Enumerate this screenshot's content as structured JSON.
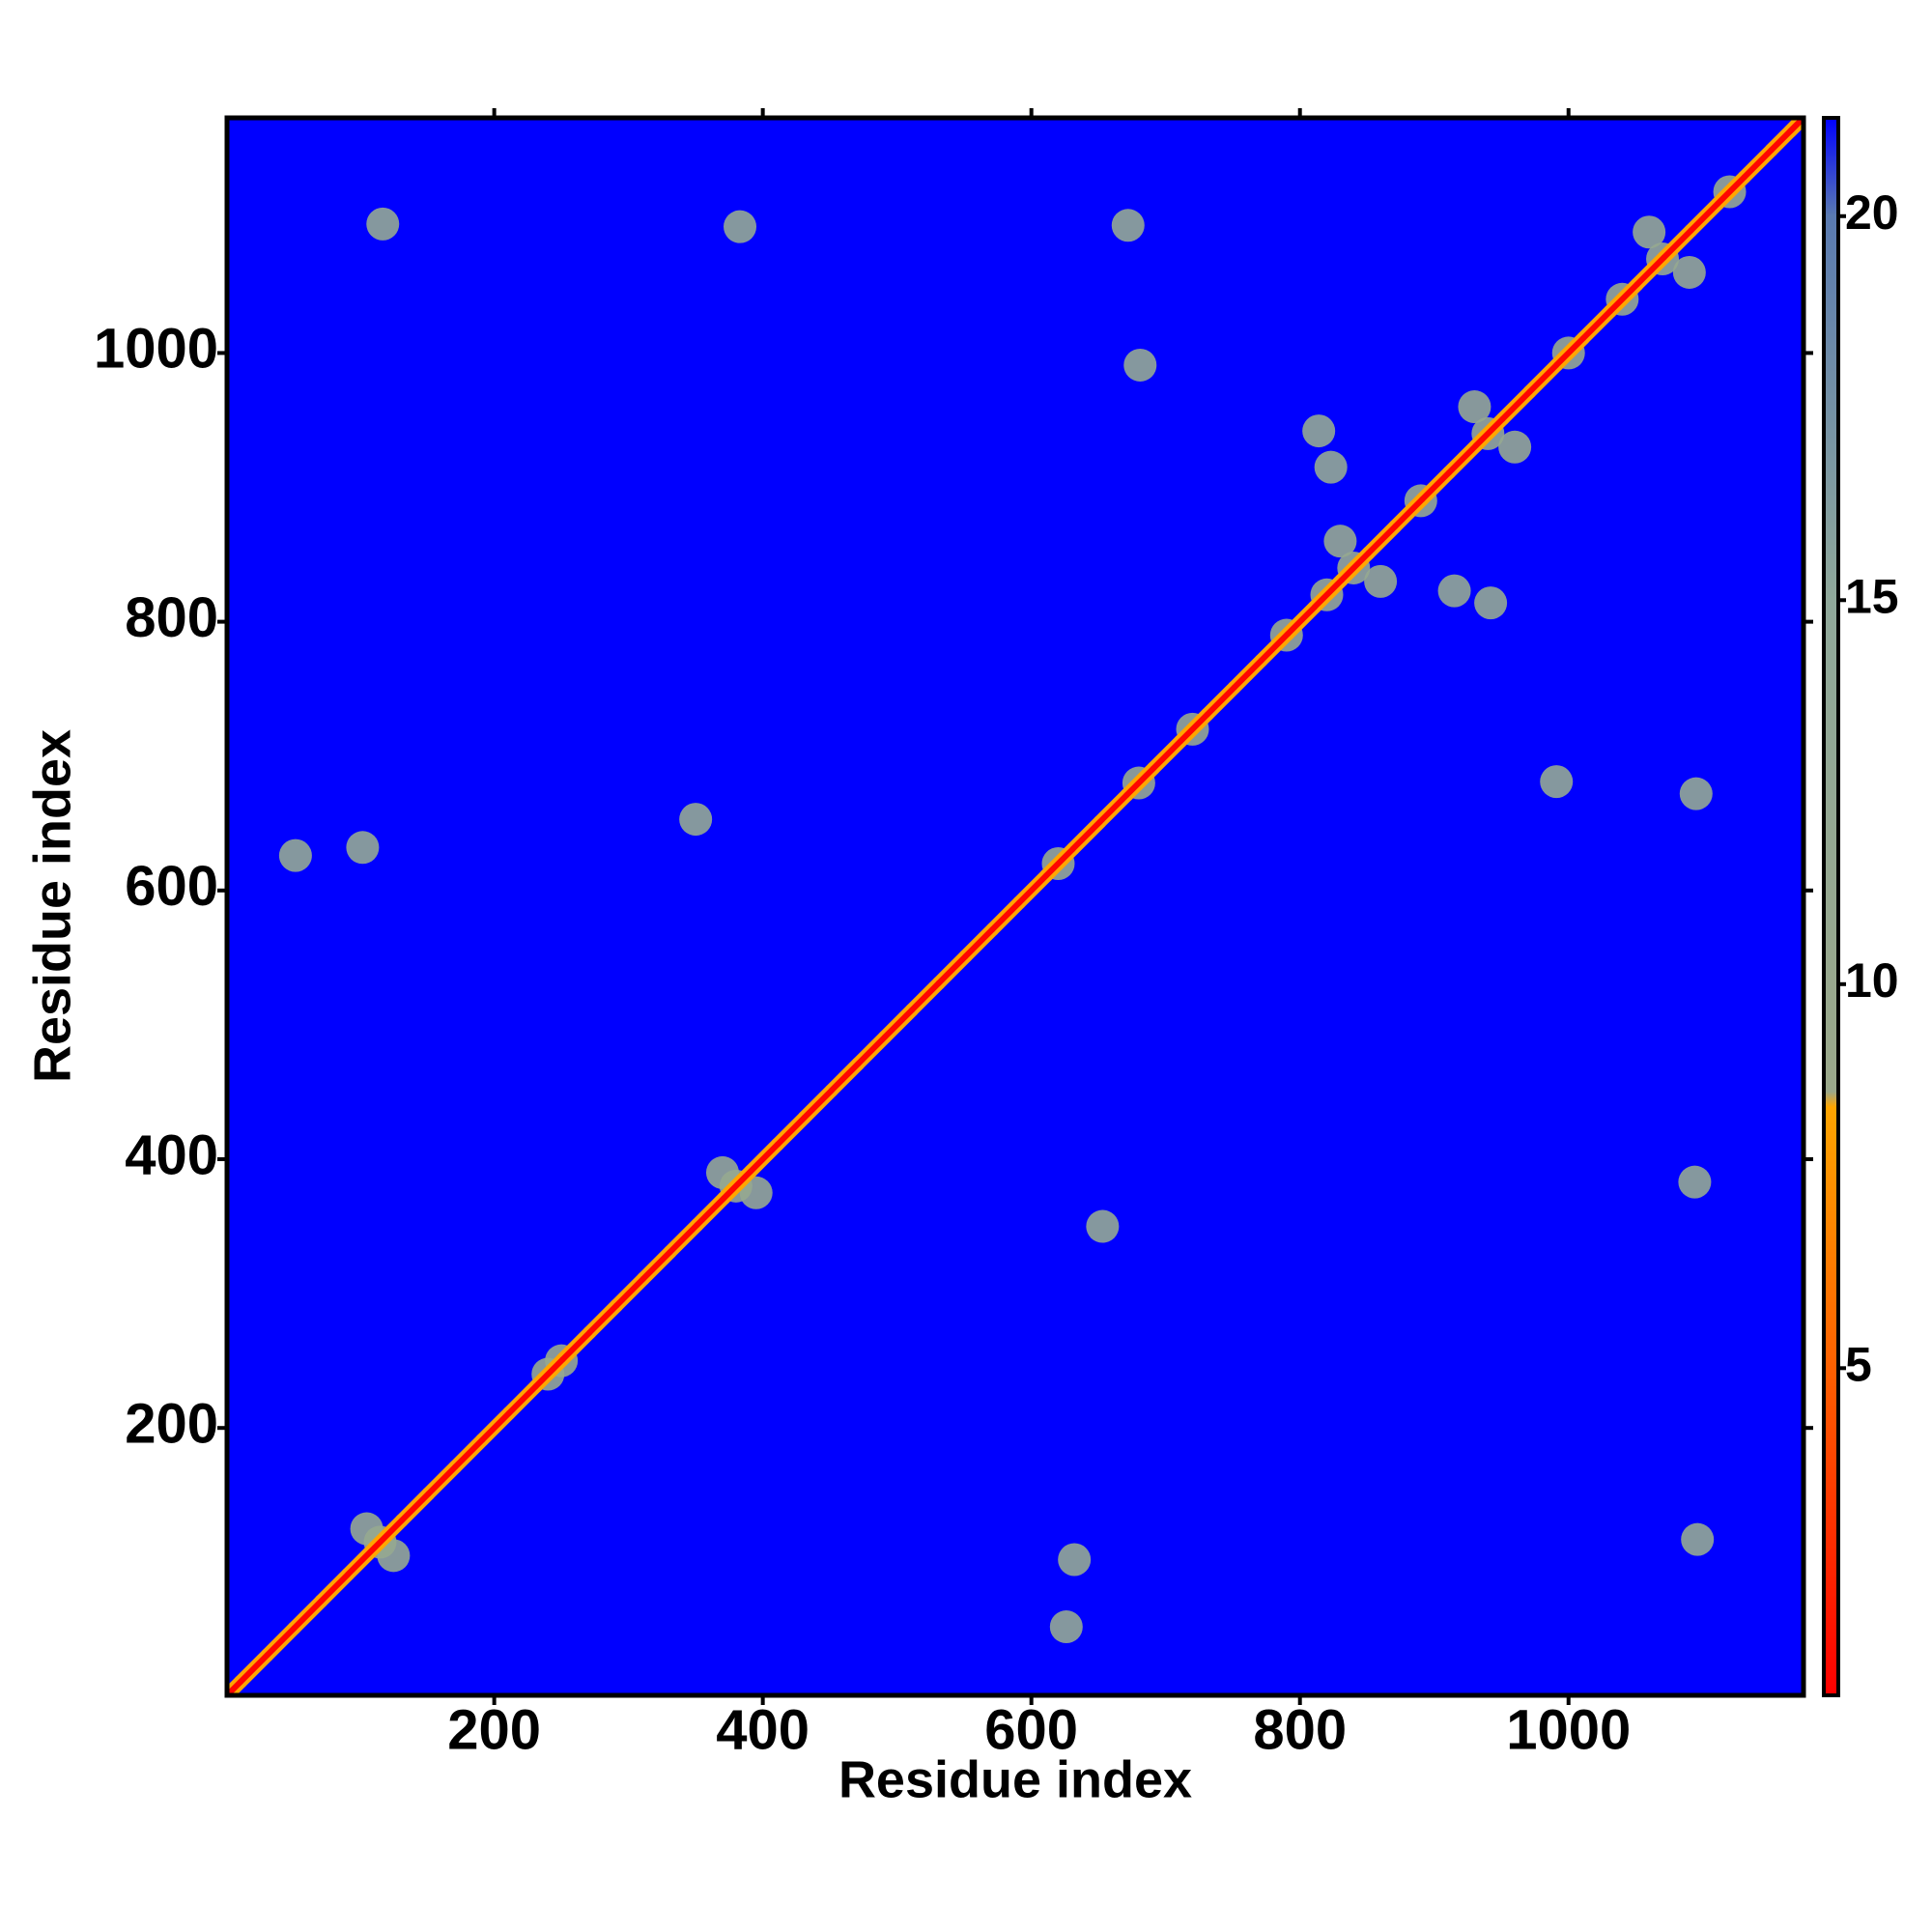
{
  "chart_data": {
    "type": "heatmap",
    "xlabel": "Residue index",
    "ylabel": "Residue index",
    "xlim": [
      1,
      1175
    ],
    "ylim": [
      1,
      1175
    ],
    "xticks": [
      200,
      400,
      600,
      800,
      1000
    ],
    "yticks": [
      200,
      400,
      600,
      800,
      1000
    ],
    "colorbar": {
      "lim": [
        0.74,
        21.28
      ],
      "ticks": [
        5,
        10,
        15,
        20
      ],
      "stops": [
        {
          "value": 0.74,
          "color": "#ff0000"
        },
        {
          "value": 5,
          "color": "#ff6000"
        },
        {
          "value": 8.4,
          "color": "#ffa500"
        },
        {
          "value": 8.6,
          "color": "#9aa88a"
        },
        {
          "value": 15,
          "color": "#8fa89a"
        },
        {
          "value": 20,
          "color": "#5a7ab0"
        },
        {
          "value": 21.28,
          "color": "#0000ff"
        }
      ]
    },
    "x": [
      1,
      21,
      41,
      61,
      81,
      101,
      121,
      141,
      161,
      181,
      201,
      221,
      241,
      261,
      281,
      301,
      321,
      341,
      361,
      381,
      401,
      421,
      441,
      461,
      481,
      501,
      521,
      541,
      561,
      581,
      601,
      621,
      641,
      661,
      681,
      701,
      721,
      741,
      761,
      781,
      801,
      821,
      841,
      861,
      881,
      901,
      921,
      941,
      961,
      981,
      1001,
      1021,
      1041,
      1061,
      1081,
      1101,
      1121,
      1141,
      1161,
      1175,
      115,
      105,
      125,
      240,
      250,
      380,
      370,
      395,
      620,
      680,
      720,
      790,
      820,
      840,
      830,
      860,
      890,
      940,
      930,
      960,
      1000,
      1040,
      1070,
      1060,
      1090,
      1120,
      672,
      1095,
      681,
      991,
      350,
      653,
      52,
      626,
      102,
      632,
      117,
      1096,
      383,
      1094,
      814,
      942,
      915,
      823
    ],
    "y": [
      1,
      21,
      41,
      61,
      81,
      101,
      121,
      141,
      161,
      181,
      201,
      221,
      241,
      261,
      281,
      301,
      321,
      341,
      361,
      381,
      401,
      421,
      441,
      461,
      481,
      501,
      521,
      541,
      561,
      581,
      601,
      621,
      641,
      661,
      681,
      701,
      721,
      741,
      761,
      781,
      801,
      821,
      841,
      861,
      881,
      901,
      921,
      941,
      961,
      981,
      1001,
      1021,
      1041,
      1061,
      1081,
      1101,
      1121,
      1141,
      1161,
      1175,
      115,
      125,
      105,
      240,
      250,
      380,
      390,
      375,
      620,
      680,
      720,
      790,
      820,
      840,
      860,
      830,
      890,
      940,
      960,
      930,
      1000,
      1040,
      1070,
      1090,
      1060,
      1120,
      1095,
      672,
      991,
      681,
      653,
      350,
      626,
      52,
      632,
      102,
      1096,
      117,
      1094,
      383,
      942,
      814,
      823,
      915
    ],
    "values": [
      1,
      1,
      1,
      1,
      1,
      1,
      1,
      1,
      1,
      1,
      1,
      1,
      1,
      1,
      1,
      1,
      1,
      1,
      1,
      1,
      1,
      1,
      1,
      1,
      1,
      1,
      1,
      1,
      1,
      1,
      1,
      1,
      1,
      1,
      1,
      1,
      1,
      1,
      1,
      1,
      1,
      1,
      1,
      1,
      1,
      1,
      1,
      1,
      1,
      1,
      1,
      1,
      1,
      1,
      1,
      1,
      1,
      1,
      1,
      1,
      11,
      11,
      11,
      11,
      11,
      11,
      11,
      11,
      11,
      11,
      11,
      11,
      11,
      11,
      11,
      11,
      11,
      11,
      11,
      11,
      11,
      11,
      11,
      11,
      11,
      11,
      12,
      12,
      12,
      12,
      12,
      12,
      12,
      12,
      12,
      12,
      12,
      12,
      12,
      12,
      12,
      12,
      12,
      12
    ]
  }
}
